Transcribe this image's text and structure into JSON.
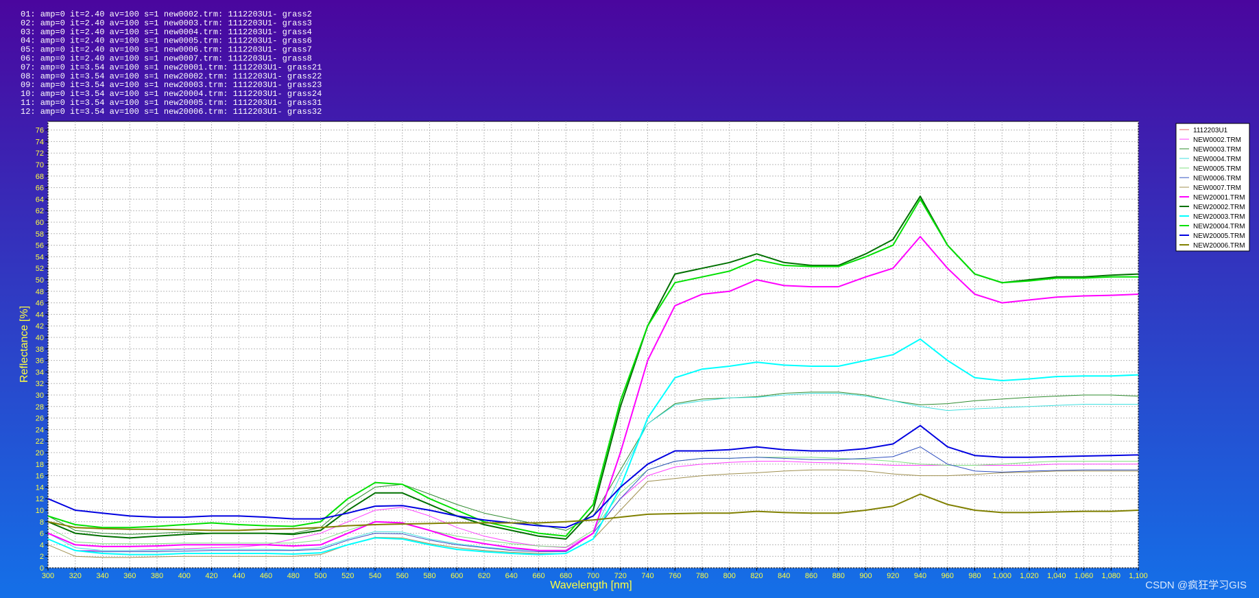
{
  "chart_data": {
    "type": "line",
    "header_lines": [
      "01: amp=0 it=2.40 av=100 s=1 new0002.trm: 1112203U1- grass2",
      "02: amp=0 it=2.40 av=100 s=1 new0003.trm: 1112203U1- grass3",
      "03: amp=0 it=2.40 av=100 s=1 new0004.trm: 1112203U1- grass4",
      "04: amp=0 it=2.40 av=100 s=1 new0005.trm: 1112203U1- grass6",
      "05: amp=0 it=2.40 av=100 s=1 new0006.trm: 1112203U1- grass7",
      "06: amp=0 it=2.40 av=100 s=1 new0007.trm: 1112203U1- grass8",
      "07: amp=0 it=3.54 av=100 s=1 new20001.trm: 1112203U1- grass21",
      "08: amp=0 it=3.54 av=100 s=1 new20002.trm: 1112203U1- grass22",
      "09: amp=0 it=3.54 av=100 s=1 new20003.trm: 1112203U1- grass23",
      "10: amp=0 it=3.54 av=100 s=1 new20004.trm: 1112203U1- grass24",
      "11: amp=0 it=3.54 av=100 s=1 new20005.trm: 1112203U1- grass31",
      "12: amp=0 it=3.54 av=100 s=1 new20006.trm: 1112203U1- grass32"
    ],
    "x_label": "Wavelength [nm]",
    "y_label": "Reflectance [%]",
    "watermark": "CSDN @疯狂学习GIS",
    "grid": true,
    "legend": "right",
    "xlim": [
      300,
      1100
    ],
    "ylim": [
      0,
      77.5
    ],
    "xticks": [
      300,
      320,
      340,
      360,
      380,
      400,
      420,
      440,
      460,
      480,
      500,
      520,
      540,
      560,
      580,
      600,
      620,
      640,
      660,
      680,
      700,
      720,
      740,
      760,
      780,
      800,
      820,
      840,
      860,
      880,
      900,
      920,
      940,
      960,
      980,
      {
        "value": 1000,
        "label": "1,000"
      },
      {
        "value": 1020,
        "label": "1,020"
      },
      {
        "value": 1040,
        "label": "1,040"
      },
      {
        "value": 1060,
        "label": "1,060"
      },
      {
        "value": 1080,
        "label": "1,080"
      },
      {
        "value": 1100,
        "label": "1,100"
      }
    ],
    "yticks": [
      0,
      2,
      4,
      6,
      8,
      10,
      12,
      14,
      16,
      18,
      20,
      22,
      24,
      26,
      28,
      30,
      32,
      34,
      36,
      38,
      40,
      42,
      44,
      46,
      48,
      50,
      52,
      54,
      56,
      58,
      60,
      62,
      64,
      66,
      68,
      70,
      72,
      74,
      76
    ],
    "x": [
      300,
      320,
      340,
      360,
      380,
      400,
      420,
      440,
      460,
      480,
      500,
      520,
      540,
      560,
      580,
      600,
      620,
      640,
      660,
      680,
      700,
      720,
      740,
      760,
      780,
      800,
      820,
      840,
      860,
      880,
      900,
      920,
      940,
      960,
      980,
      1000,
      1020,
      1040,
      1060,
      1080,
      1100
    ],
    "series": [
      {
        "name": "1112203U1",
        "color": "#e06060",
        "width": 1,
        "values": [
          null,
          null,
          null,
          null,
          null,
          null,
          null,
          null,
          null,
          null,
          null,
          null,
          null,
          null,
          null,
          null,
          null,
          null,
          null,
          null,
          null,
          null,
          null,
          null,
          null,
          null,
          null,
          null,
          null,
          null,
          null,
          null,
          null,
          null,
          null,
          null,
          null,
          null,
          null,
          null,
          null
        ]
      },
      {
        "name": "NEW0002.TRM",
        "color": "#ff40ff",
        "width": 1,
        "values": [
          5,
          3,
          3,
          3,
          3.2,
          3.3,
          3.5,
          3.6,
          4,
          5,
          6,
          8,
          10,
          10.5,
          9,
          7,
          5.5,
          4.5,
          3.8,
          3.5,
          6,
          12,
          16,
          17.5,
          18,
          18.3,
          18.5,
          18.5,
          18.3,
          18.2,
          18,
          17.8,
          17.8,
          17.8,
          17.8,
          17.8,
          17.8,
          18,
          18,
          18,
          18
        ]
      },
      {
        "name": "NEW0003.TRM",
        "color": "#2e8b2e",
        "width": 1,
        "values": [
          9,
          6.5,
          6,
          5.8,
          6,
          6.2,
          6,
          6,
          6,
          6,
          7,
          11,
          14,
          14.5,
          12.8,
          11,
          9.5,
          8.5,
          7.5,
          6.5,
          9,
          17,
          25,
          28.5,
          29.3,
          29.5,
          29.7,
          30.3,
          30.5,
          30.5,
          30,
          29,
          28.3,
          28.5,
          29,
          29.3,
          29.6,
          29.8,
          30,
          30,
          29.8
        ]
      },
      {
        "name": "NEW0004.TRM",
        "color": "#40e0e0",
        "width": 1,
        "values": [
          6,
          3.5,
          3,
          3,
          3,
          3.2,
          3.2,
          3.2,
          3.2,
          3.1,
          3.5,
          5,
          6.3,
          6.2,
          5,
          4.2,
          3.6,
          3.2,
          3,
          3,
          6,
          16,
          25,
          28.3,
          29,
          29.5,
          29.6,
          30,
          30.3,
          30.3,
          29.8,
          29,
          28,
          27.3,
          27.6,
          27.8,
          28,
          28.2,
          28.4,
          28.4,
          28.4
        ]
      },
      {
        "name": "NEW0005.TRM",
        "color": "#80e080",
        "width": 1,
        "values": [
          7,
          4.5,
          4.2,
          4.2,
          4.2,
          4.3,
          4.3,
          4.3,
          4.3,
          4.3,
          4.8,
          6.5,
          8,
          7.8,
          6.5,
          5.5,
          4.8,
          4.2,
          3.8,
          3.6,
          6.5,
          13,
          17,
          18.5,
          19,
          19,
          19.2,
          19.2,
          19.2,
          19,
          18.8,
          18.5,
          18,
          17.8,
          17.8,
          18,
          18.3,
          18.5,
          18.5,
          18.5,
          18.5
        ]
      },
      {
        "name": "NEW0006.TRM",
        "color": "#3050c0",
        "width": 1,
        "values": [
          5,
          3,
          2.8,
          2.8,
          2.8,
          2.9,
          3,
          3,
          3,
          3,
          3.2,
          4.8,
          6,
          5.9,
          4.8,
          4,
          3.5,
          3,
          2.8,
          2.8,
          6,
          12,
          17,
          18.5,
          19,
          19,
          19.2,
          19,
          18.8,
          18.8,
          19,
          19.3,
          21,
          18,
          16.8,
          16.6,
          16.8,
          16.9,
          17,
          17,
          17
        ]
      },
      {
        "name": "NEW0007.TRM",
        "color": "#a09050",
        "width": 1,
        "values": [
          4,
          2,
          1.8,
          1.8,
          1.9,
          2,
          2,
          2,
          2,
          2,
          2.3,
          4,
          5.3,
          5.2,
          4.2,
          3.5,
          3,
          2.7,
          2.5,
          2.5,
          5,
          10,
          15,
          15.5,
          16,
          16.3,
          16.5,
          16.8,
          17,
          17,
          16.8,
          16.3,
          16,
          16,
          16.2,
          16.5,
          16.6,
          16.8,
          16.8,
          16.8,
          16.8
        ]
      },
      {
        "name": "NEW20001.TRM",
        "color": "#ff00ff",
        "width": 2,
        "values": [
          6,
          4,
          3.7,
          3.7,
          3.8,
          4,
          4,
          4,
          4,
          3.8,
          4,
          6,
          8,
          7.8,
          6.5,
          5,
          4.2,
          3.5,
          3,
          3,
          6,
          20,
          36,
          45.5,
          47.5,
          48,
          50,
          49,
          48.8,
          48.8,
          50.5,
          52,
          57.5,
          52,
          47.5,
          46,
          46.5,
          47,
          47.2,
          47.3,
          47.5
        ]
      },
      {
        "name": "NEW20002.TRM",
        "color": "#007000",
        "width": 2,
        "values": [
          8,
          6,
          5.5,
          5.2,
          5.5,
          5.8,
          6,
          6,
          6,
          5.8,
          6.5,
          10,
          13,
          13,
          11,
          9,
          7.5,
          6.5,
          5.5,
          5,
          10,
          28,
          42,
          51,
          52,
          53,
          54.5,
          53,
          52.5,
          52.5,
          54.5,
          57,
          64.5,
          56,
          51,
          49.5,
          50,
          50.5,
          50.5,
          50.8,
          51
        ]
      },
      {
        "name": "NEW20003.TRM",
        "color": "#00ffff",
        "width": 2,
        "values": [
          5,
          3,
          2.5,
          2.3,
          2.3,
          2.5,
          2.5,
          2.5,
          2.5,
          2.4,
          2.6,
          4,
          5.2,
          5,
          4,
          3.2,
          2.8,
          2.5,
          2.3,
          2.5,
          5,
          14,
          26,
          33,
          34.5,
          35,
          35.7,
          35.2,
          35,
          35,
          36,
          37,
          39.7,
          36,
          33,
          32.5,
          32.8,
          33.2,
          33.3,
          33.3,
          33.5
        ]
      },
      {
        "name": "NEW20004.TRM",
        "color": "#00e000",
        "width": 2,
        "values": [
          9,
          7.5,
          7,
          7,
          7.2,
          7.5,
          7.8,
          7.5,
          7.3,
          7.2,
          8,
          12,
          14.8,
          14.5,
          12,
          10,
          8,
          7,
          6,
          5.5,
          11,
          29,
          42,
          49.5,
          50.5,
          51.5,
          53.5,
          52.5,
          52.3,
          52.3,
          54,
          56,
          64,
          56,
          51,
          49.5,
          49.8,
          50.3,
          50.3,
          50.5,
          50.5
        ]
      },
      {
        "name": "NEW20005.TRM",
        "color": "#0000e0",
        "width": 2,
        "values": [
          12,
          10,
          9.5,
          9,
          8.8,
          8.8,
          9,
          9,
          8.8,
          8.5,
          8.5,
          9.5,
          10.7,
          10.8,
          10,
          9,
          8.3,
          7.8,
          7.3,
          7,
          9,
          14,
          18,
          20.3,
          20.3,
          20.5,
          21,
          20.5,
          20.3,
          20.3,
          20.7,
          21.5,
          24.7,
          21,
          19.5,
          19.2,
          19.2,
          19.3,
          19.4,
          19.5,
          19.6
        ]
      },
      {
        "name": "NEW20006.TRM",
        "color": "#808000",
        "width": 2,
        "values": [
          8,
          7,
          6.8,
          6.7,
          6.7,
          6.6,
          6.5,
          6.5,
          6.7,
          6.8,
          7,
          7.3,
          7.5,
          7.6,
          7.7,
          7.8,
          7.8,
          7.8,
          7.8,
          8,
          8.3,
          8.8,
          9.3,
          9.4,
          9.5,
          9.5,
          9.8,
          9.6,
          9.5,
          9.5,
          10,
          10.7,
          12.8,
          11,
          10,
          9.6,
          9.6,
          9.7,
          9.8,
          9.8,
          10
        ]
      }
    ]
  }
}
